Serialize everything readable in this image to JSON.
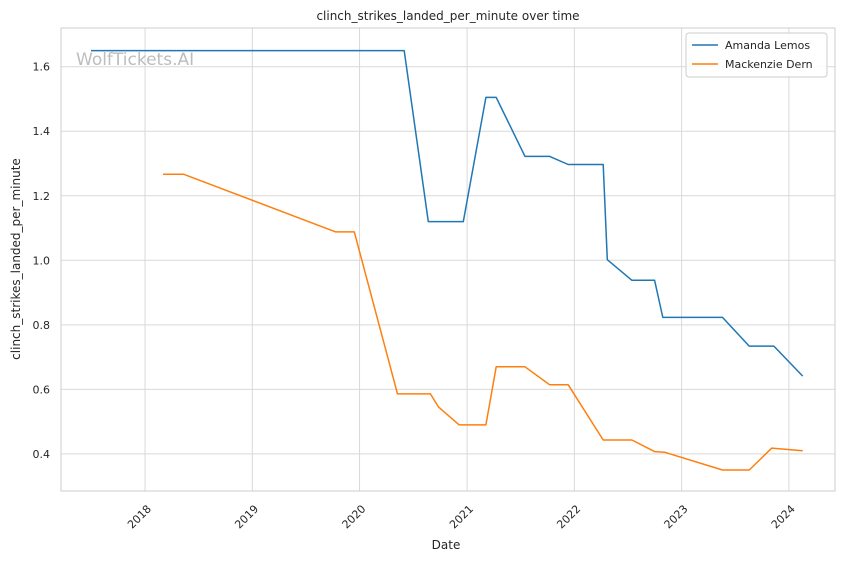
{
  "watermark": "WolfTickets.AI",
  "chart_data": {
    "type": "line",
    "title": "clinch_strikes_landed_per_minute over time",
    "xlabel": "Date",
    "ylabel": "clinch_strikes_landed_per_minute",
    "x_type": "date",
    "xlim": [
      "2017-03-21",
      "2024-06-06"
    ],
    "ylim": [
      0.285,
      1.72
    ],
    "x_ticks": [
      "2018-01-01",
      "2019-01-01",
      "2020-01-01",
      "2021-01-01",
      "2022-01-01",
      "2023-01-01",
      "2024-01-01"
    ],
    "x_tick_labels": [
      "2018",
      "2019",
      "2020",
      "2021",
      "2022",
      "2023",
      "2024"
    ],
    "y_ticks": [
      0.4,
      0.6,
      0.8,
      1.0,
      1.2,
      1.4,
      1.6
    ],
    "y_tick_labels": [
      "0.4",
      "0.6",
      "0.8",
      "1.0",
      "1.2",
      "1.4",
      "1.6"
    ],
    "grid": true,
    "legend_position": "top-right",
    "series": [
      {
        "name": "Amanda Lemos",
        "color": "#1f77b4",
        "points": [
          [
            "2017-07-01",
            1.65
          ],
          [
            "2020-06-01",
            1.65
          ],
          [
            "2020-08-22",
            1.12
          ],
          [
            "2020-12-19",
            1.12
          ],
          [
            "2021-03-06",
            1.505
          ],
          [
            "2021-04-10",
            1.505
          ],
          [
            "2021-07-17",
            1.322
          ],
          [
            "2021-10-09",
            1.322
          ],
          [
            "2021-12-11",
            1.297
          ],
          [
            "2022-04-09",
            1.297
          ],
          [
            "2022-04-23",
            1.002
          ],
          [
            "2022-07-16",
            0.938
          ],
          [
            "2022-10-01",
            0.938
          ],
          [
            "2022-10-29",
            0.823
          ],
          [
            "2023-05-20",
            0.823
          ],
          [
            "2023-08-19",
            0.734
          ],
          [
            "2023-11-11",
            0.734
          ],
          [
            "2024-02-17",
            0.641
          ]
        ]
      },
      {
        "name": "Mackenzie Dern",
        "color": "#ff7f0e",
        "points": [
          [
            "2018-03-03",
            1.267
          ],
          [
            "2018-05-12",
            1.267
          ],
          [
            "2019-10-12",
            1.088
          ],
          [
            "2019-12-14",
            1.088
          ],
          [
            "2020-05-09",
            0.586
          ],
          [
            "2020-08-29",
            0.586
          ],
          [
            "2020-09-26",
            0.545
          ],
          [
            "2020-12-05",
            0.49
          ],
          [
            "2021-03-06",
            0.49
          ],
          [
            "2021-04-10",
            0.67
          ],
          [
            "2021-07-17",
            0.67
          ],
          [
            "2021-10-09",
            0.614
          ],
          [
            "2021-12-11",
            0.614
          ],
          [
            "2022-04-09",
            0.443
          ],
          [
            "2022-07-16",
            0.443
          ],
          [
            "2022-10-01",
            0.407
          ],
          [
            "2022-11-05",
            0.405
          ],
          [
            "2023-05-20",
            0.35
          ],
          [
            "2023-08-19",
            0.35
          ],
          [
            "2023-11-04",
            0.418
          ],
          [
            "2024-02-17",
            0.41
          ]
        ]
      }
    ]
  }
}
